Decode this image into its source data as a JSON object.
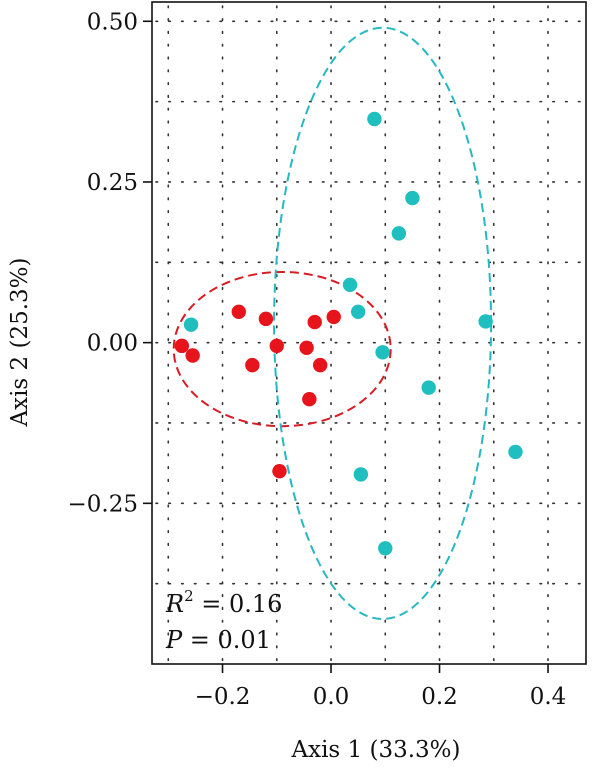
{
  "chart_data": {
    "type": "scatter",
    "title": "",
    "xlabel": "Axis 1 (33.3%)",
    "ylabel": "Axis 2 (25.3%)",
    "xlim": [
      -0.33,
      0.47
    ],
    "ylim": [
      -0.5,
      0.53
    ],
    "xticks": [
      -0.2,
      0.0,
      0.2,
      0.4
    ],
    "xtick_labels": [
      "−0.2",
      "0.0",
      "0.2",
      "0.4"
    ],
    "yticks": [
      -0.25,
      0.0,
      0.25,
      0.5
    ],
    "ytick_labels": [
      "−0.25",
      "0.00",
      "0.25",
      "0.50"
    ],
    "grid": true,
    "legend": "none",
    "series": [
      {
        "color": "#e8141c",
        "points": [
          [
            -0.275,
            -0.005
          ],
          [
            -0.255,
            -0.02
          ],
          [
            -0.17,
            0.048
          ],
          [
            -0.145,
            -0.035
          ],
          [
            -0.12,
            0.037
          ],
          [
            -0.1,
            -0.005
          ],
          [
            -0.095,
            -0.2
          ],
          [
            -0.045,
            -0.008
          ],
          [
            -0.04,
            -0.088
          ],
          [
            -0.03,
            0.032
          ],
          [
            -0.02,
            -0.035
          ],
          [
            0.005,
            0.04
          ]
        ],
        "ellipse": {
          "cx": -0.09,
          "cy": -0.01,
          "rx": 0.2,
          "ry": 0.12,
          "color": "#d91c24"
        }
      },
      {
        "color": "#1fbfbf",
        "points": [
          [
            -0.258,
            0.028
          ],
          [
            0.035,
            0.09
          ],
          [
            0.05,
            0.048
          ],
          [
            0.055,
            -0.205
          ],
          [
            0.08,
            0.348
          ],
          [
            0.095,
            -0.015
          ],
          [
            0.1,
            -0.32
          ],
          [
            0.125,
            0.17
          ],
          [
            0.15,
            0.225
          ],
          [
            0.18,
            -0.07
          ],
          [
            0.285,
            0.033
          ],
          [
            0.34,
            -0.17
          ]
        ],
        "ellipse": {
          "cx": 0.095,
          "cy": 0.03,
          "rx": 0.2,
          "ry": 0.46,
          "color": "#26b8c2"
        }
      }
    ],
    "annotations": {
      "r2": {
        "symbol": "R",
        "sup": "2",
        "text": " = 0.16"
      },
      "p": {
        "symbol": "P",
        "text": " = 0.01"
      }
    }
  }
}
